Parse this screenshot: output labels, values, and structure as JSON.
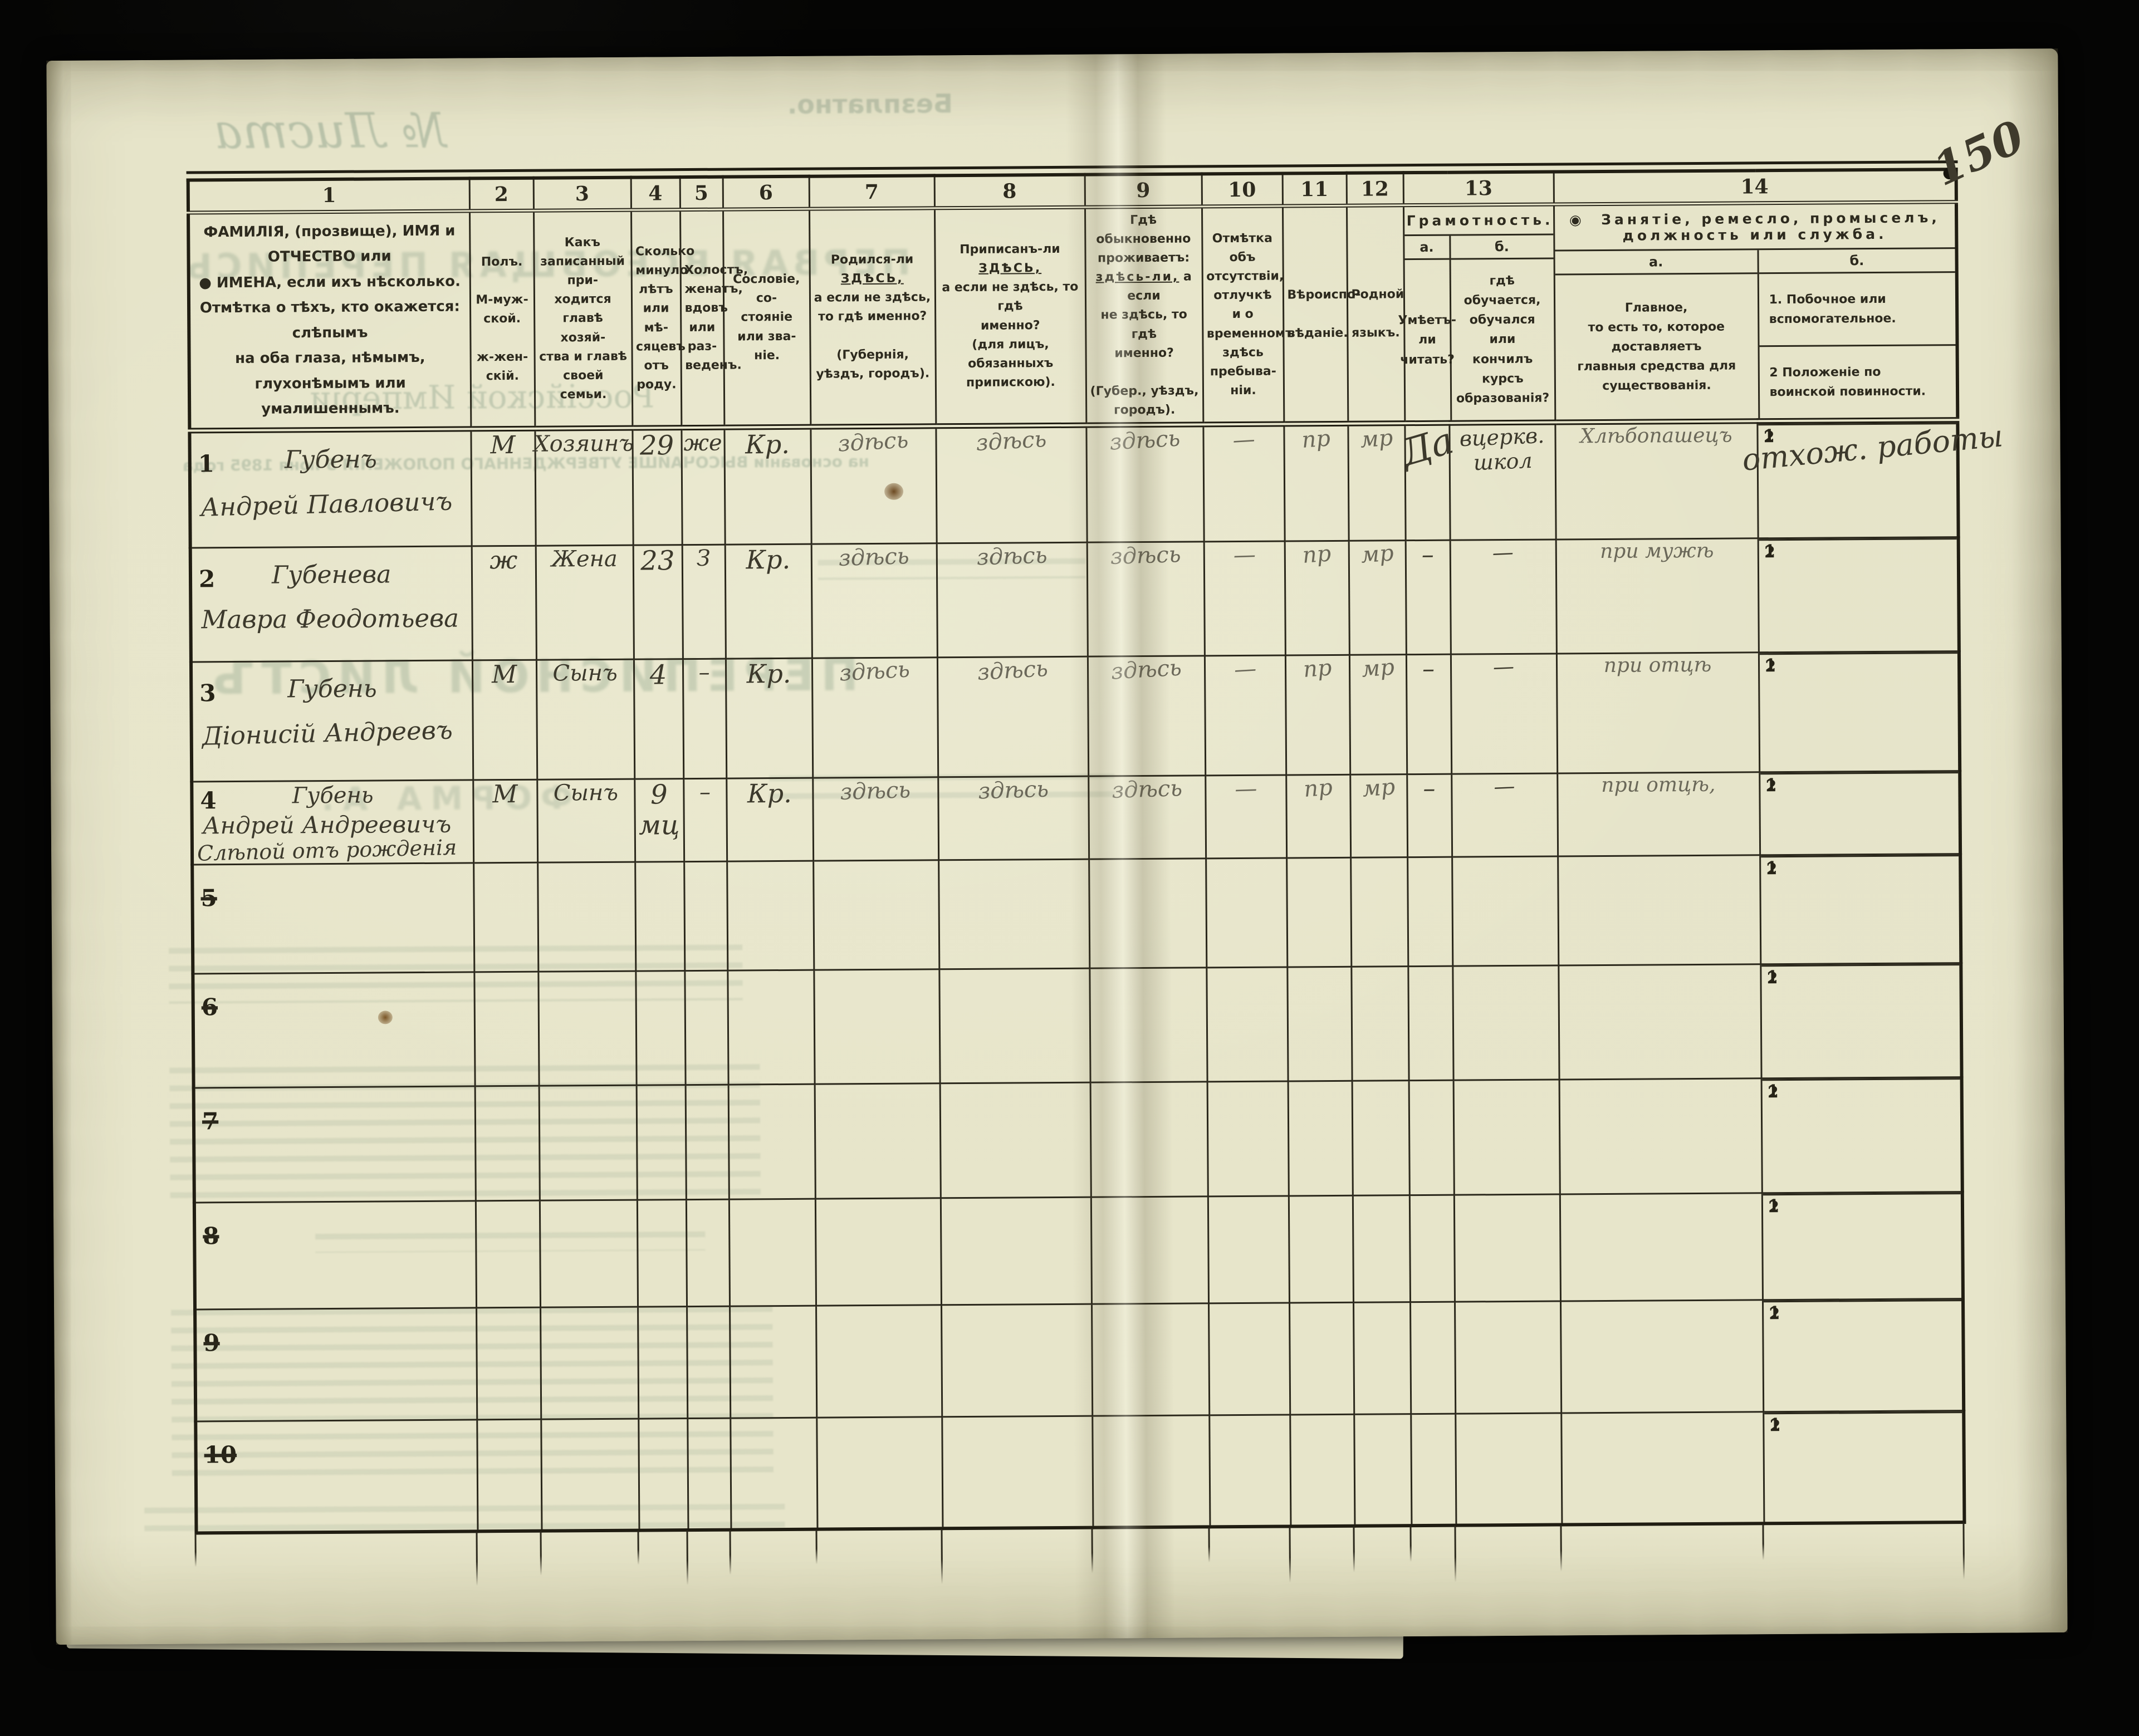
{
  "page": {
    "number_annotation": "150"
  },
  "bleed": {
    "sheet_no": "№ Листа",
    "free": "Безплатно.",
    "census_title": "ПЕРВАЯ ВСЕОБЩАЯ ПЕРЕПИСЬ",
    "empire": "Россійской Имперіи,",
    "basis": "на основаніи ВЫСОЧАЙШЕ УТВЕРЖДЕННАГО ПОЛОЖЕНІЯ 5 Іюня 1895 года",
    "sheet_title": "ПЕРЕПИСНОЙ ЛИСТЪ",
    "form_a": "ФОРМА А."
  },
  "table": {
    "sub_row_labels": [
      "1",
      "2"
    ],
    "columns": {
      "c1": {
        "num": "1",
        "label": "ФАМИЛІЯ, (прозвище), ИМЯ и ОТЧЕСТВО или\n●  ИМЕНА, если ихъ нѣсколько.\nОтмѣтка о тѣхъ, кто окажется: слѣпымъ\nна оба глаза, нѣмымъ, глухонѣмымъ или\nумалишеннымъ."
      },
      "c2": {
        "num": "2",
        "label": "Полъ.\n\nМ-муж-\nской.\n\nж-жен-\nскій."
      },
      "c3": {
        "num": "3",
        "label": "Какъ записанный при-\nходится главѣ хозяй-\nства и главѣ своей\nсемьи."
      },
      "c4": {
        "num": "4",
        "label": "Сколько\nминуло\nлѣтъ\nили мѣ-\nсяцевъ\nотъ роду."
      },
      "c5": {
        "num": "5",
        "label": "Холостъ,\nженатъ,\nвдовъ\nили раз-\nведенъ."
      },
      "c6": {
        "num": "6",
        "label": "Сословіе, со-\nстояніе или зва-\nніе."
      },
      "c7": {
        "num": "7",
        "pre": "Родился-ли ",
        "u": "ЗДѢСЬ,",
        "rest": "\nа если не здѣсь,\nто гдѣ именно?\n\n(Губернія, уѣздъ, городъ)."
      },
      "c8": {
        "num": "8",
        "pre": "Приписанъ-ли ",
        "u": "ЗДѢСЬ,",
        "rest": "\nа если не здѣсь, то гдѣ\nименно?\n(для лицъ, обязанныхъ\nприпискою)."
      },
      "c9": {
        "num": "9",
        "pre": "Гдѣ обыкновенно\nпроживаетъ:\n",
        "u": "здѣсь-ли,",
        "rest": " а если\nне здѣсь, то гдѣ\nименно?\n\n(Губер., уѣздъ, городъ)."
      },
      "c10": {
        "num": "10",
        "label": "Отмѣтка объ\nотсутствіи, отлучкѣ\nи о временномъ\nздѣсь пребыва-\nніи."
      },
      "c11": {
        "num": "11",
        "label": "Вѣроиспо-\n\nвѣданіе."
      },
      "c12": {
        "num": "12",
        "label": "Родной\n\nязыкъ."
      },
      "c13": {
        "num": "13",
        "title": "Грамотность.",
        "a_letter": "а.",
        "b_letter": "б.",
        "a_q": "Умѣетъ-\nли\nчитать?",
        "b_q": "гдѣ обучается,\nобучался или\nкончилъ курсъ\nобразованія?"
      },
      "c14": {
        "num": "14",
        "marker": "◉",
        "title": "Занятіе, ремесло, промыселъ, должность или служба.",
        "a_letter": "а.",
        "b_letter": "б.",
        "a_q": "Главное,\nто есть то, которое доставляетъ\nглавныя средства для существованія.",
        "b_q1": "1.  Побочное или вспомогательное.",
        "b_q2": "2   Положеніе по воинской повинности."
      }
    },
    "rows": [
      {
        "num": "1",
        "struck": false,
        "surname": "Губенъ",
        "name": "Андрей Павловичъ",
        "note": "",
        "sex": "М",
        "relation": "Хозяинъ",
        "age": "29",
        "marital": "же",
        "estate": "Кр.",
        "born": "здѣсь",
        "registered": "здѣсь",
        "resides": "здѣсь",
        "absence": "—",
        "religion": "пр",
        "language": "мр",
        "reads": "Да",
        "school": "вцеркв.\nшкол",
        "occupation": "Хлѣбопашецъ",
        "side1": "отхож. работы",
        "side2": ""
      },
      {
        "num": "2",
        "struck": false,
        "surname": "Губенева",
        "name": "Мавра Феодотьева",
        "note": "",
        "sex": "ж",
        "relation": "Жена",
        "age": "23",
        "marital": "З",
        "estate": "Кр.",
        "born": "здѣсь",
        "registered": "здѣсь",
        "resides": "здѣсь",
        "absence": "—",
        "religion": "пр",
        "language": "мр",
        "reads": "–",
        "school": "—",
        "occupation": "при мужѣ",
        "side1": "",
        "side2": ""
      },
      {
        "num": "3",
        "struck": false,
        "surname": "Губень",
        "name": "Діонисій Андреевъ",
        "note": "",
        "sex": "М",
        "relation": "Сынъ",
        "age": "4",
        "marital": "–",
        "estate": "Кр.",
        "born": "здѣсь",
        "registered": "здѣсь",
        "resides": "здѣсь",
        "absence": "—",
        "religion": "пр",
        "language": "мр",
        "reads": "–",
        "school": "—",
        "occupation": "при отцѣ",
        "side1": "",
        "side2": ""
      },
      {
        "num": "4",
        "struck": false,
        "surname": "Губень",
        "name": "Андрей Андреевичъ",
        "note": "Слѣпой отъ рожденія",
        "sex": "М",
        "relation": "Сынъ",
        "age": "9\nмц",
        "marital": "–",
        "estate": "Кр.",
        "born": "здѣсь",
        "registered": "здѣсь",
        "resides": "здѣсь",
        "absence": "—",
        "religion": "пр",
        "language": "мр",
        "reads": "–",
        "school": "—",
        "occupation": "при отцѣ,",
        "side1": "",
        "side2": ""
      },
      {
        "num": "5",
        "struck": true,
        "surname": "",
        "name": "",
        "note": "",
        "sex": "",
        "relation": "",
        "age": "",
        "marital": "",
        "estate": "",
        "born": "",
        "registered": "",
        "resides": "",
        "absence": "",
        "religion": "",
        "language": "",
        "reads": "",
        "school": "",
        "occupation": "",
        "side1": "",
        "side2": ""
      },
      {
        "num": "6",
        "struck": true,
        "surname": "",
        "name": "",
        "note": "",
        "sex": "",
        "relation": "",
        "age": "",
        "marital": "",
        "estate": "",
        "born": "",
        "registered": "",
        "resides": "",
        "absence": "",
        "religion": "",
        "language": "",
        "reads": "",
        "school": "",
        "occupation": "",
        "side1": "",
        "side2": ""
      },
      {
        "num": "7",
        "struck": true,
        "surname": "",
        "name": "",
        "note": "",
        "sex": "",
        "relation": "",
        "age": "",
        "marital": "",
        "estate": "",
        "born": "",
        "registered": "",
        "resides": "",
        "absence": "",
        "religion": "",
        "language": "",
        "reads": "",
        "school": "",
        "occupation": "",
        "side1": "",
        "side2": ""
      },
      {
        "num": "8",
        "struck": true,
        "surname": "",
        "name": "",
        "note": "",
        "sex": "",
        "relation": "",
        "age": "",
        "marital": "",
        "estate": "",
        "born": "",
        "registered": "",
        "resides": "",
        "absence": "",
        "religion": "",
        "language": "",
        "reads": "",
        "school": "",
        "occupation": "",
        "side1": "",
        "side2": ""
      },
      {
        "num": "9",
        "struck": true,
        "surname": "",
        "name": "",
        "note": "",
        "sex": "",
        "relation": "",
        "age": "",
        "marital": "",
        "estate": "",
        "born": "",
        "registered": "",
        "resides": "",
        "absence": "",
        "religion": "",
        "language": "",
        "reads": "",
        "school": "",
        "occupation": "",
        "side1": "",
        "side2": ""
      },
      {
        "num": "10",
        "struck": true,
        "surname": "",
        "name": "",
        "note": "",
        "sex": "",
        "relation": "",
        "age": "",
        "marital": "",
        "estate": "",
        "born": "",
        "registered": "",
        "resides": "",
        "absence": "",
        "religion": "",
        "language": "",
        "reads": "",
        "school": "",
        "occupation": "",
        "side1": "",
        "side2": ""
      }
    ]
  }
}
